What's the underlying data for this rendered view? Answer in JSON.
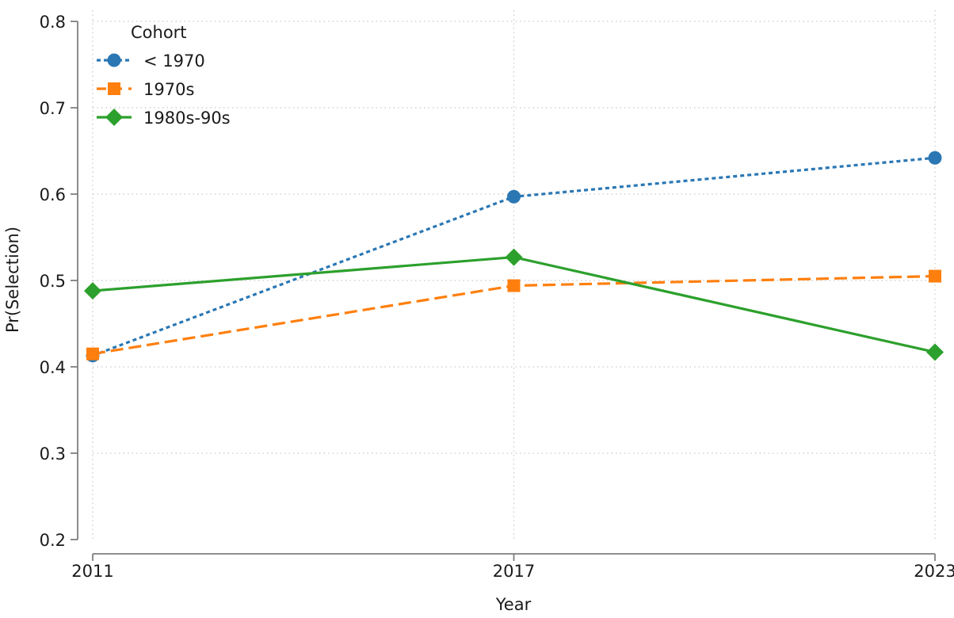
{
  "chart_data": {
    "type": "line",
    "title": "",
    "xlabel": "Year",
    "ylabel": "Pr(Selection)",
    "x": [
      2011,
      2017,
      2023
    ],
    "x_tick_labels": [
      "2011",
      "2017",
      "2023"
    ],
    "xlim": [
      2011,
      2023
    ],
    "ylim": [
      0.2,
      0.8
    ],
    "y_ticks": [
      0.2,
      0.3,
      0.4,
      0.5,
      0.6,
      0.7,
      0.8
    ],
    "y_tick_labels": [
      "0.2",
      "0.3",
      "0.4",
      "0.5",
      "0.6",
      "0.7",
      "0.8"
    ],
    "grid": true,
    "legend": {
      "title": "Cohort",
      "placement": "top-left"
    },
    "series": [
      {
        "name": "< 1970",
        "values": [
          0.413,
          0.597,
          0.642
        ],
        "color": "#2a77b4",
        "marker": "circle",
        "line_style": "dotted"
      },
      {
        "name": "1970s",
        "values": [
          0.415,
          0.494,
          0.505
        ],
        "color": "#ff7f0e",
        "marker": "square",
        "line_style": "dashed"
      },
      {
        "name": "1980s-90s",
        "values": [
          0.488,
          0.527,
          0.417
        ],
        "color": "#2ca02c",
        "marker": "diamond",
        "line_style": "solid"
      }
    ]
  }
}
